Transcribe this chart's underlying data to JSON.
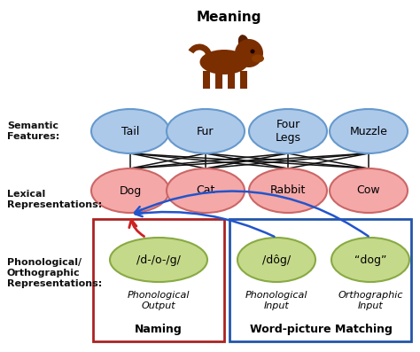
{
  "title": "Meaning",
  "semantic_label": "Semantic\nFeatures:",
  "lexical_label": "Lexical\nRepresentations:",
  "phonological_label": "Phonological/\nOrthographic\nRepresentations:",
  "semantic_nodes": [
    "Tail",
    "Fur",
    "Four\nLegs",
    "Muzzle"
  ],
  "lexical_nodes": [
    "Dog",
    "Cat",
    "Rabbit",
    "Cow"
  ],
  "phon_output_node": "/d-/o-/g/",
  "phon_input_node": "/dôg/",
  "ortho_input_node": "“dog”",
  "phon_output_label": "Phonological\nOutput",
  "naming_label": "Naming",
  "phon_input_label": "Phonological\nInput",
  "ortho_input_label": "Orthographic\nInput",
  "wpm_label": "Word-picture Matching",
  "semantic_color": "#adc9ea",
  "semantic_edge": "#6699cc",
  "lexical_color": "#f5a8a8",
  "lexical_edge": "#cc6666",
  "green_color": "#c5d98a",
  "green_edge": "#88aa44",
  "bg_color": "#ffffff",
  "text_color": "#000000",
  "label_color": "#111111",
  "naming_box_color": "#aa2222",
  "wpm_box_color": "#2255aa",
  "connection_color": "#111111",
  "red_arrow_color": "#cc2222",
  "blue_arrow_color": "#2255cc",
  "dog_color": "#7B2E00",
  "dog_dark": "#5A1E00"
}
